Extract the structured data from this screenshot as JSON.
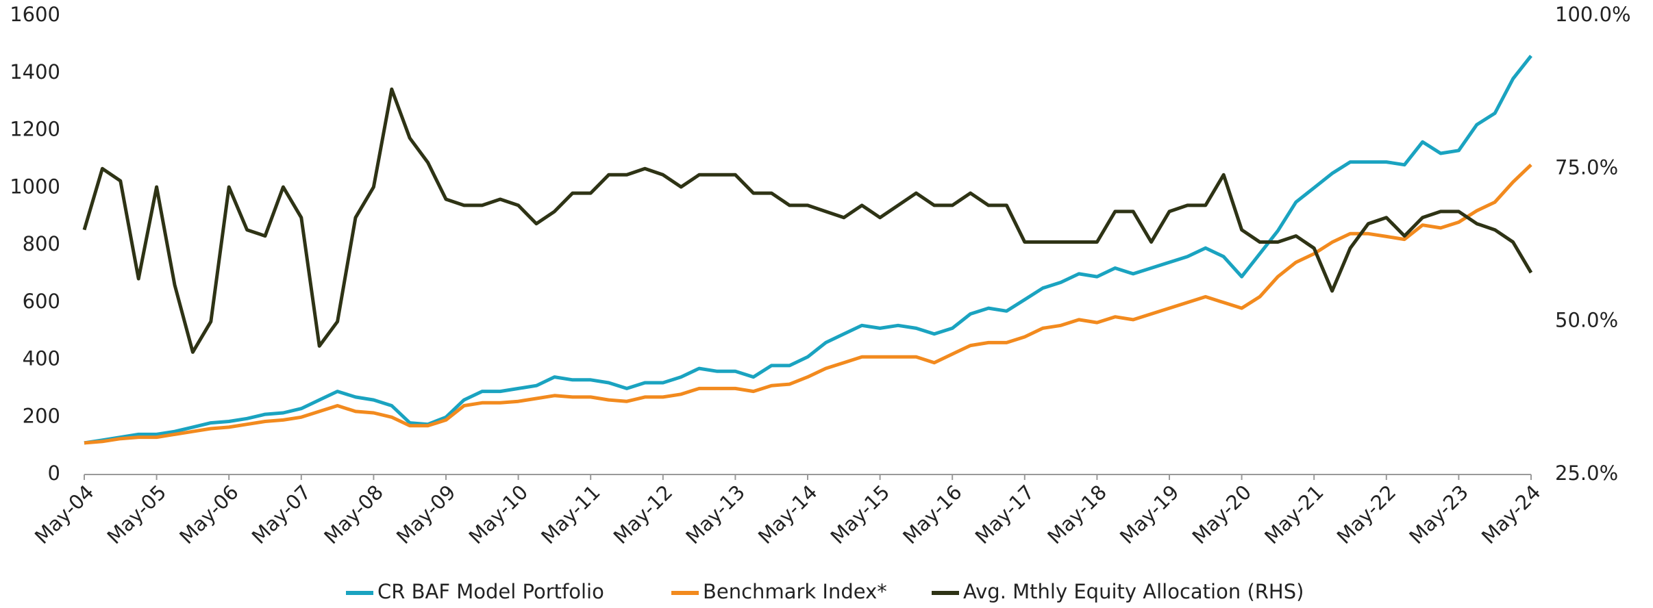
{
  "chart_data": {
    "type": "line",
    "categories": [
      "May-04",
      null,
      null,
      null,
      "May-05",
      null,
      null,
      null,
      "May-06",
      null,
      null,
      null,
      "May-07",
      null,
      null,
      null,
      "May-08",
      null,
      null,
      null,
      "May-09",
      null,
      null,
      null,
      "May-10",
      null,
      null,
      null,
      "May-11",
      null,
      null,
      null,
      "May-12",
      null,
      null,
      null,
      "May-13",
      null,
      null,
      null,
      "May-14",
      null,
      null,
      null,
      "May-15",
      null,
      null,
      null,
      "May-16",
      null,
      null,
      null,
      "May-17",
      null,
      null,
      null,
      "May-18",
      null,
      null,
      null,
      "May-19",
      null,
      null,
      null,
      "May-20",
      null,
      null,
      null,
      "May-21",
      null,
      null,
      null,
      "May-22",
      null,
      null,
      null,
      "May-23",
      null,
      null,
      null,
      "May-24"
    ],
    "series": [
      {
        "name": "CR BAF Model Portfolio",
        "color": "#1aa3c0",
        "values": [
          110,
          120,
          130,
          140,
          140,
          150,
          165,
          180,
          185,
          195,
          210,
          215,
          230,
          260,
          290,
          270,
          260,
          240,
          180,
          175,
          200,
          260,
          290,
          290,
          300,
          310,
          340,
          330,
          330,
          320,
          300,
          320,
          320,
          340,
          370,
          360,
          360,
          340,
          380,
          380,
          410,
          460,
          490,
          520,
          510,
          520,
          510,
          490,
          510,
          560,
          580,
          570,
          610,
          650,
          670,
          700,
          690,
          720,
          700,
          720,
          740,
          760,
          790,
          760,
          690,
          770,
          850,
          950,
          1000,
          1050,
          1090,
          1090,
          1090,
          1080,
          1160,
          1120,
          1130,
          1220,
          1260,
          1380,
          1460
        ]
      },
      {
        "name": "Benchmark Index*",
        "color": "#f28a1e",
        "values": [
          110,
          115,
          125,
          130,
          130,
          140,
          150,
          160,
          165,
          175,
          185,
          190,
          200,
          220,
          240,
          220,
          215,
          200,
          170,
          170,
          190,
          240,
          250,
          250,
          255,
          265,
          275,
          270,
          270,
          260,
          255,
          270,
          270,
          280,
          300,
          300,
          300,
          290,
          310,
          315,
          340,
          370,
          390,
          410,
          410,
          410,
          410,
          390,
          420,
          450,
          460,
          460,
          480,
          510,
          520,
          540,
          530,
          550,
          540,
          560,
          580,
          600,
          620,
          600,
          580,
          620,
          690,
          740,
          770,
          810,
          840,
          840,
          830,
          820,
          870,
          860,
          880,
          920,
          950,
          1020,
          1080
        ]
      },
      {
        "name": "Avg. Mthly Equity Allocation (RHS)",
        "color": "#2e3315",
        "axis": "y2",
        "values": [
          65,
          75,
          73,
          57,
          72,
          56,
          45,
          50,
          72,
          65,
          64,
          72,
          67,
          46,
          50,
          67,
          72,
          88,
          80,
          76,
          70,
          69,
          69,
          70,
          69,
          66,
          68,
          71,
          71,
          74,
          74,
          75,
          74,
          72,
          74,
          74,
          74,
          71,
          71,
          69,
          69,
          68,
          67,
          69,
          67,
          69,
          71,
          69,
          69,
          71,
          69,
          69,
          63,
          63,
          63,
          63,
          63,
          68,
          68,
          63,
          68,
          69,
          69,
          74,
          65,
          63,
          63,
          64,
          62,
          55,
          62,
          66,
          67,
          64,
          67,
          68,
          68,
          66,
          65,
          63,
          58
        ]
      }
    ],
    "ylim": [
      0,
      1600
    ],
    "yticks": [
      0,
      200,
      400,
      600,
      800,
      1000,
      1200,
      1400,
      1600
    ],
    "y2lim": [
      25,
      100
    ],
    "y2ticks": [
      {
        "value": 25,
        "label": "25.0%"
      },
      {
        "value": 50,
        "label": "50.0%"
      },
      {
        "value": 75,
        "label": "75.0%"
      },
      {
        "value": 100,
        "label": "100.0%"
      }
    ],
    "legend": "bottom",
    "grid": false
  }
}
